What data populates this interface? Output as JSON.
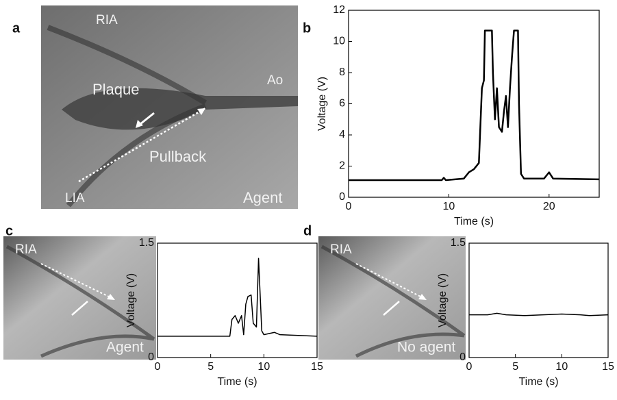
{
  "figure": {
    "panels": [
      {
        "letter": "a",
        "labels": [
          "RIA",
          "Ao",
          "Plaque",
          "Pullback",
          "LIA",
          "Agent"
        ]
      },
      {
        "letter": "b"
      },
      {
        "letter": "c",
        "labels": [
          "RIA",
          "Agent"
        ]
      },
      {
        "letter": "d",
        "labels": [
          "RIA",
          "No agent"
        ]
      }
    ]
  },
  "chart_data": [
    {
      "type": "line",
      "x_label": "Time (s)",
      "y_label": "Voltage (V)",
      "xlim": [
        0,
        25
      ],
      "xticks": [
        0,
        10,
        20
      ],
      "ylim": [
        0,
        12
      ],
      "yticks": [
        0,
        2,
        4,
        6,
        8,
        10,
        12
      ],
      "x": [
        0,
        5,
        9.3,
        9.5,
        9.7,
        11.5,
        12,
        12.5,
        13,
        13.3,
        13.5,
        13.6,
        14.3,
        14.4,
        14.6,
        14.8,
        15,
        15.3,
        15.5,
        15.7,
        15.9,
        16.1,
        16.3,
        16.5,
        16.9,
        17,
        17.2,
        17.5,
        19.5,
        20,
        20.4,
        25
      ],
      "series": [
        {
          "color": "#000000",
          "values": [
            1.1,
            1.1,
            1.1,
            1.25,
            1.1,
            1.2,
            1.6,
            1.8,
            2.2,
            7,
            7.5,
            10.7,
            10.7,
            8,
            5,
            7,
            4.5,
            4.2,
            5.5,
            6.5,
            4.5,
            7,
            9,
            10.7,
            10.7,
            6,
            1.5,
            1.2,
            1.2,
            1.6,
            1.2,
            1.15
          ]
        }
      ]
    },
    {
      "type": "line",
      "x_label": "Time (s)",
      "y_label": "Voltage (V)",
      "xlim": [
        0,
        15
      ],
      "xticks": [
        0,
        5,
        10,
        15
      ],
      "ylim": [
        0,
        1.5
      ],
      "yticks": [
        0,
        1.5
      ],
      "x": [
        0,
        6.8,
        7,
        7.3,
        7.6,
        7.9,
        8.1,
        8.3,
        8.5,
        8.8,
        9.0,
        9.3,
        9.5,
        9.8,
        10,
        11,
        11.5,
        15
      ],
      "series": [
        {
          "color": "#000000",
          "values": [
            0.28,
            0.28,
            0.5,
            0.55,
            0.45,
            0.55,
            0.3,
            0.7,
            0.8,
            0.82,
            0.45,
            0.4,
            1.3,
            0.35,
            0.3,
            0.33,
            0.3,
            0.28
          ]
        }
      ]
    },
    {
      "type": "line",
      "x_label": "Time (s)",
      "y_label": "Voltage (V)",
      "xlim": [
        0,
        15
      ],
      "xticks": [
        0,
        5,
        10,
        15
      ],
      "ylim": [
        0,
        1.5
      ],
      "yticks": [
        0,
        1.5
      ],
      "x": [
        0,
        2,
        3,
        4,
        6,
        8,
        10,
        12,
        13,
        15
      ],
      "series": [
        {
          "color": "#000000",
          "values": [
            0.56,
            0.56,
            0.58,
            0.56,
            0.55,
            0.56,
            0.57,
            0.56,
            0.55,
            0.56
          ]
        }
      ]
    }
  ]
}
